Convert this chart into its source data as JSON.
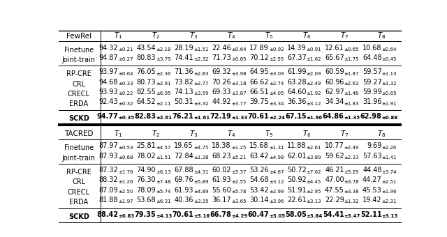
{
  "fewrel_baseline": [
    [
      "Finetune",
      "94.32",
      "0.21",
      "43.54",
      "2.18",
      "28.19",
      "1.51",
      "22.46",
      "0.64",
      "17.89",
      "0.92",
      "14.39",
      "0.91",
      "12.61",
      "0.65",
      "10.68",
      "0.64"
    ],
    [
      "Joint-train",
      "94.87",
      "0.27",
      "80.83",
      "3.79",
      "74.41",
      "2.32",
      "71.73",
      "0.85",
      "70.12",
      "2.55",
      "67.37",
      "1.62",
      "65.67",
      "1.75",
      "64.48",
      "0.45"
    ]
  ],
  "fewrel_methods": [
    [
      "RP-CRE",
      "93.97",
      "0.64",
      "76.05",
      "2.36",
      "71.36",
      "2.83",
      "69.32",
      "3.98",
      "64.95",
      "3.09",
      "61.99",
      "2.09",
      "60.59",
      "1.87",
      "59.57",
      "1.13"
    ],
    [
      "CRL",
      "94.68",
      "0.33",
      "80.73",
      "2.91",
      "73.82",
      "2.77",
      "70.26",
      "3.18",
      "66.62",
      "2.74",
      "63.28",
      "2.49",
      "60.96",
      "2.63",
      "59.27",
      "1.32"
    ],
    [
      "CRECL",
      "93.93",
      "0.22",
      "82.55",
      "6.95",
      "74.13",
      "3.59",
      "69.33",
      "3.87",
      "66.51",
      "4.05",
      "64.60",
      "1.92",
      "62.97",
      "1.46",
      "59.99",
      "0.65"
    ],
    [
      "ERDA",
      "92.43",
      "0.32",
      "64.52",
      "2.11",
      "50.31",
      "3.32",
      "44.92",
      "3.77",
      "39.75",
      "3.34",
      "36.36",
      "3.12",
      "34.34",
      "1.83",
      "31.96",
      "1.91"
    ]
  ],
  "fewrel_sckd": [
    [
      "SCKD",
      "94.77",
      "0.35",
      "82.83",
      "2.61",
      "76.21",
      "1.61",
      "72.19",
      "1.33",
      "70.61",
      "2.24",
      "67.15",
      "1.96",
      "64.86",
      "1.35",
      "62.98",
      "0.88"
    ]
  ],
  "tacred_baseline": [
    [
      "Finetune",
      "87.97",
      "0.53",
      "25.81",
      "4.57",
      "19.65",
      "4.75",
      "18.38",
      "1.25",
      "15.68",
      "1.31",
      "11.88",
      "2.61",
      "10.77",
      "2.49",
      "9.69",
      "2.26"
    ],
    [
      "Joint-train",
      "87.93",
      "0.68",
      "78.02",
      "1.51",
      "72.84",
      "1.38",
      "68.23",
      "5.21",
      "63.42",
      "4.98",
      "62.01",
      "3.89",
      "59.62",
      "2.33",
      "57.63",
      "1.41"
    ]
  ],
  "tacred_methods": [
    [
      "RP-CRE",
      "87.32",
      "1.76",
      "74.90",
      "6.13",
      "67.88",
      "4.31",
      "60.02",
      "5.37",
      "53.26",
      "4.67",
      "50.72",
      "7.62",
      "46.21",
      "5.29",
      "44.48",
      "3.74"
    ],
    [
      "CRL",
      "88.32",
      "1.26",
      "76.30",
      "7.48",
      "69.76",
      "5.89",
      "61.93",
      "2.55",
      "54.68",
      "3.12",
      "50.92",
      "4.45",
      "47.00",
      "3.78",
      "44.27",
      "2.51"
    ],
    [
      "CRECL",
      "87.09",
      "2.50",
      "78.09",
      "5.74",
      "61.93",
      "4.89",
      "55.60",
      "5.78",
      "53.42",
      "2.99",
      "51.91",
      "2.95",
      "47.55",
      "3.38",
      "45.53",
      "1.96"
    ],
    [
      "ERDA",
      "81.88",
      "1.97",
      "53.68",
      "6.31",
      "40.36",
      "3.35",
      "36.17",
      "3.65",
      "30.14",
      "3.96",
      "22.61",
      "3.13",
      "22.29",
      "1.32",
      "19.42",
      "2.31"
    ]
  ],
  "tacred_sckd": [
    [
      "SCKD",
      "88.42",
      "0.83",
      "79.35",
      "4.13",
      "70.61",
      "3.16",
      "66.78",
      "4.29",
      "60.47",
      "3.05",
      "58.05",
      "3.84",
      "54.41",
      "3.47",
      "52.11",
      "3.15"
    ]
  ],
  "bg_color": "#ffffff",
  "text_color": "#000000"
}
